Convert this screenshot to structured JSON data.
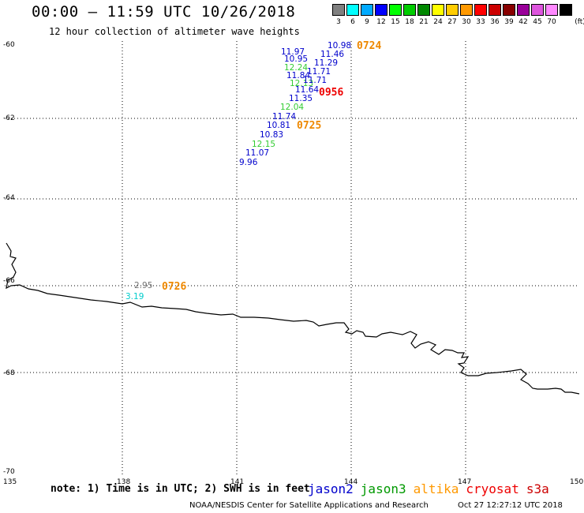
{
  "title": "00:00 – 11:59 UTC 10/26/2018",
  "subtitle": "12 hour collection of altimeter wave heights",
  "scale": {
    "unit": "(ft)",
    "bins": [
      {
        "label": "3",
        "color": "#808080"
      },
      {
        "label": "6",
        "color": "#00ffff"
      },
      {
        "label": "9",
        "color": "#00aaff"
      },
      {
        "label": "12",
        "color": "#0000ff"
      },
      {
        "label": "15",
        "color": "#00ff00"
      },
      {
        "label": "18",
        "color": "#00cc00"
      },
      {
        "label": "21",
        "color": "#008800"
      },
      {
        "label": "24",
        "color": "#ffff00"
      },
      {
        "label": "27",
        "color": "#ffcc00"
      },
      {
        "label": "30",
        "color": "#ff9900"
      },
      {
        "label": "33",
        "color": "#ff0000"
      },
      {
        "label": "36",
        "color": "#cc0000"
      },
      {
        "label": "39",
        "color": "#880000"
      },
      {
        "label": "42",
        "color": "#990099"
      },
      {
        "label": "45",
        "color": "#dd55dd"
      },
      {
        "label": "70",
        "color": "#ff88ff"
      },
      {
        "label": "",
        "color": "#000000"
      }
    ]
  },
  "map": {
    "lon_labels": [
      "135",
      "138",
      "141",
      "144",
      "147",
      "150"
    ],
    "lat_labels": [
      "-60",
      "-62",
      "-64",
      "-66",
      "-68",
      "-70"
    ],
    "wave_heights": [
      {
        "value": "10.98",
        "color": "#0000cc"
      },
      {
        "value": "11.97",
        "color": "#0000cc"
      },
      {
        "value": "11.46",
        "color": "#0000cc"
      },
      {
        "value": "10.95",
        "color": "#0000cc"
      },
      {
        "value": "11.29",
        "color": "#0000cc"
      },
      {
        "value": "12.24",
        "color": "#33cc33"
      },
      {
        "value": "11.84",
        "color": "#0000cc"
      },
      {
        "value": "11.71",
        "color": "#0000cc"
      },
      {
        "value": "12.13",
        "color": "#33cc33"
      },
      {
        "value": "11.71",
        "color": "#0000cc"
      },
      {
        "value": "11.64",
        "color": "#0000cc"
      },
      {
        "value": "11.35",
        "color": "#0000cc"
      },
      {
        "value": "12.04",
        "color": "#33cc33"
      },
      {
        "value": "11.74",
        "color": "#0000cc"
      },
      {
        "value": "10.81",
        "color": "#0000cc"
      },
      {
        "value": "10.83",
        "color": "#0000cc"
      },
      {
        "value": "12.15",
        "color": "#33cc33"
      },
      {
        "value": "11.07",
        "color": "#0000cc"
      },
      {
        "value": "9.96",
        "color": "#0000cc"
      },
      {
        "value": "2.95",
        "color": "#707070"
      },
      {
        "value": "3.19",
        "color": "#00cccc"
      }
    ],
    "pass_times": [
      {
        "time": "0724",
        "color": "#ee8800"
      },
      {
        "time": "0956",
        "color": "#ee0000"
      },
      {
        "time": "0725",
        "color": "#ee8800"
      },
      {
        "time": "0726",
        "color": "#ee8800"
      }
    ]
  },
  "note": "note: 1) Time is in UTC; 2) SWH is in feet",
  "legend": [
    {
      "name": "jason2",
      "color": "#0000cc"
    },
    {
      "name": "jason3",
      "color": "#009900"
    },
    {
      "name": "altika",
      "color": "#ff9900"
    },
    {
      "name": "cryosat",
      "color": "#ee0000"
    },
    {
      "name": "s3a",
      "color": "#cc0000"
    }
  ],
  "credit": "NOAA/NESDIS Center for Satellite Applications and Research",
  "generated": "Oct 27 12:27:12 UTC 2018"
}
